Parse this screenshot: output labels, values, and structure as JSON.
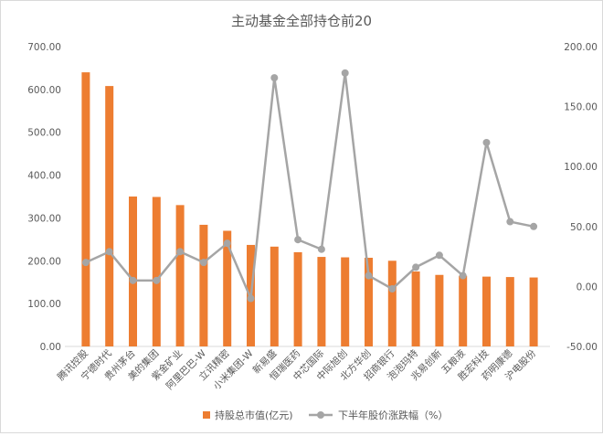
{
  "chart_data": {
    "type": "bar",
    "title": "主动基金全部持仓前20",
    "categories": [
      "腾讯控股",
      "宁德时代",
      "贵州茅台",
      "美的集团",
      "紫金矿业",
      "阿里巴巴-W",
      "立讯精密",
      "小米集团-W",
      "新易盛",
      "恒瑞医药",
      "中芯国际",
      "中际旭创",
      "北方华创",
      "招商银行",
      "泡泡玛特",
      "兆易创新",
      "五粮液",
      "胜宏科技",
      "药明康德",
      "沪电股份"
    ],
    "series": [
      {
        "name": "持股总市值(亿元)",
        "type": "bar",
        "axis": "left",
        "color": "#ED7D31",
        "values": [
          640,
          608,
          350,
          349,
          330,
          284,
          270,
          237,
          233,
          220,
          209,
          208,
          207,
          200,
          175,
          167,
          165,
          163,
          162,
          161
        ]
      },
      {
        "name": "下半年股价涨跌幅（%）",
        "type": "line",
        "axis": "right",
        "color": "#A5A5A5",
        "values": [
          20,
          29,
          5,
          5,
          29,
          20,
          36,
          -10,
          174,
          39,
          31,
          178,
          9,
          -2,
          16,
          26,
          9,
          120,
          54,
          50
        ]
      }
    ],
    "y_left": {
      "min": 0,
      "max": 700,
      "step": 100,
      "ticks": [
        "0.00",
        "100.00",
        "200.00",
        "300.00",
        "400.00",
        "500.00",
        "600.00",
        "700.00"
      ]
    },
    "y_right": {
      "min": -50,
      "max": 200,
      "step": 50,
      "ticks": [
        "-50.00",
        "0.00",
        "50.00",
        "100.00",
        "150.00",
        "200.00"
      ]
    },
    "grid": false,
    "legend_position": "bottom"
  }
}
